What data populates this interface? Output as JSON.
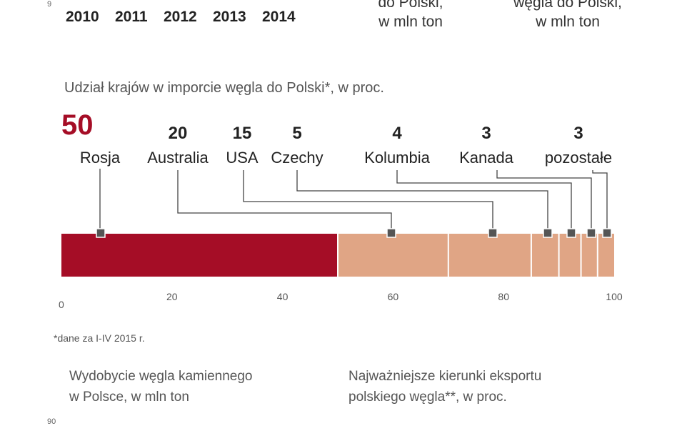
{
  "top": {
    "axis_digit": "9",
    "years": [
      "2010",
      "2011",
      "2012",
      "2013",
      "2014"
    ],
    "import_header": [
      "do Polski,",
      "w mln ton"
    ],
    "import_header2": [
      "węgla do Polski,",
      "w mln ton"
    ]
  },
  "chart_data": {
    "type": "bar",
    "title": "Udział krajów w imporcie węgla do Polski*, w proc.",
    "orientation": "horizontal-stacked",
    "categories": [
      "Rosja",
      "Australia",
      "USA",
      "Czechy",
      "Kolumbia",
      "Kanada",
      "pozostałe"
    ],
    "values": [
      50,
      20,
      15,
      5,
      4,
      3,
      3
    ],
    "value_labels": [
      "50",
      "20",
      "15",
      "5",
      "4",
      "3",
      "3"
    ],
    "xlim": [
      0,
      100
    ],
    "xticks": [
      "0",
      "20",
      "40",
      "60",
      "80",
      "100"
    ],
    "colors": {
      "highlight": "#a50d26",
      "segment": "#e0a585",
      "highlight_label": "#a50d26",
      "label": "#222222"
    },
    "grid": false,
    "legend": "none"
  },
  "footnote": "*dane za I-IV 2015 r.",
  "bottom": {
    "left_caption": [
      "Wydobycie węgla kamiennego",
      "w Polsce, w mln ton"
    ],
    "right_caption": [
      "Najważniejsze kierunki eksportu",
      "polskiego węgla**, w proc."
    ],
    "axis_fragment": "90"
  }
}
